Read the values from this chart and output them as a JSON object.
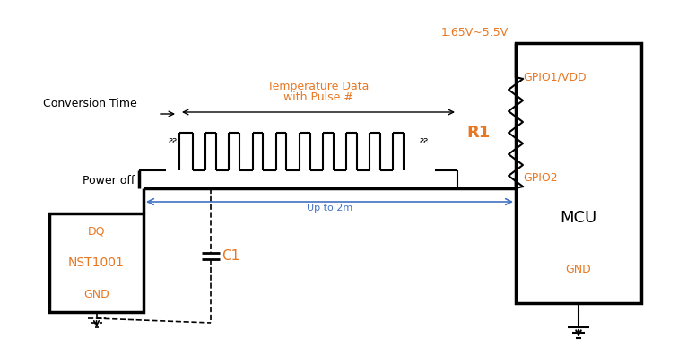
{
  "bg_color": "#ffffff",
  "line_color": "#000000",
  "orange_color": "#E87722",
  "blue_color": "#4472C4",
  "fig_width": 7.76,
  "fig_height": 3.97,
  "labels": {
    "conversion_time": "Conversion Time",
    "temp_data_line1": "Temperature Data",
    "temp_data_line2": "with Pulse #",
    "power_off": "Power off",
    "voltage": "1.65V~5.5V",
    "r1": "R1",
    "gpio1": "GPIO1/VDD",
    "gpio2": "GPIO2",
    "mcu": "MCU",
    "gnd": "GND",
    "dq": "DQ",
    "nst1001": "NST1001",
    "gnd2": "GND",
    "c1": "C1",
    "up_to_2m": "Up to 2m"
  }
}
